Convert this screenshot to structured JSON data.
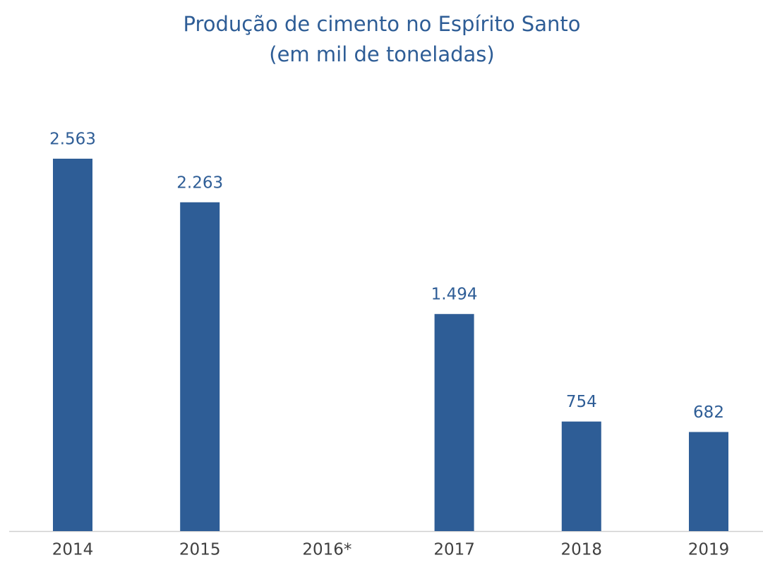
{
  "chart_data": {
    "type": "bar",
    "title": "Produção de cimento no Espírito Santo",
    "subtitle": "(em mil de toneladas)",
    "categories": [
      "2014",
      "2015",
      "2016*",
      "2017",
      "2018",
      "2019"
    ],
    "values": [
      2563,
      2263,
      null,
      1494,
      754,
      682
    ],
    "value_labels": [
      "2.563",
      "2.263",
      null,
      "1.494",
      "754",
      "682"
    ],
    "color": "#2e5d96"
  }
}
